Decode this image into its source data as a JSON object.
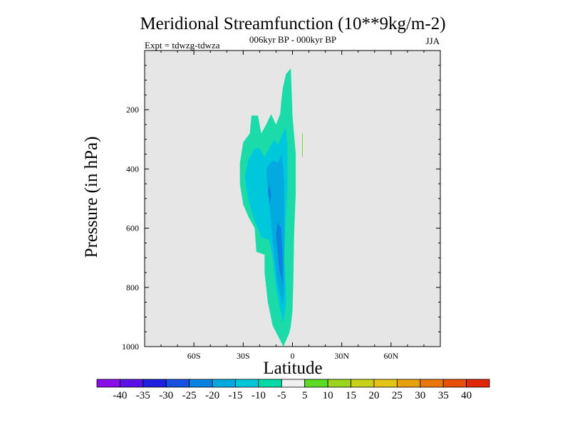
{
  "chart_data": {
    "type": "heatmap",
    "title": "Meridional Streamfunction (10**9kg/m-2)",
    "subtitle": "006kyr BP - 000kyr BP",
    "left_label": "Expt = tdwzg-tdwza",
    "right_label": "JJA",
    "xlabel": "Latitude",
    "ylabel": "Pressure (in hPa)",
    "xlim": [
      -90,
      90
    ],
    "ylim": [
      0,
      1000
    ],
    "y_inverted": true,
    "x_ticks": [
      {
        "value": -60,
        "label": "60S"
      },
      {
        "value": -30,
        "label": "30S"
      },
      {
        "value": 0,
        "label": "0"
      },
      {
        "value": 30,
        "label": "30N"
      },
      {
        "value": 60,
        "label": "60N"
      }
    ],
    "y_ticks": [
      {
        "value": 200,
        "label": "200"
      },
      {
        "value": 400,
        "label": "400"
      },
      {
        "value": 600,
        "label": "600"
      },
      {
        "value": 800,
        "label": "800"
      },
      {
        "value": 1000,
        "label": "1000"
      }
    ],
    "background_color": "#e6e6e6",
    "contour_levels": [
      -40,
      -35,
      -30,
      -25,
      -20,
      -15,
      -10,
      -5,
      5,
      10,
      15,
      20,
      25,
      30,
      35,
      40
    ],
    "colorbar_colors": [
      "#8a0ee8",
      "#5a10e6",
      "#2020e0",
      "#1550e0",
      "#0a82e0",
      "#02aae0",
      "#00c8d8",
      "#00dca8",
      "#f0f0f0",
      "#5cdc24",
      "#9cd41c",
      "#c8d018",
      "#e4c414",
      "#e8a00c",
      "#e87808",
      "#e85008",
      "#e02808"
    ],
    "regions": [
      {
        "level": "-10 to -5",
        "color": "#1bdca9",
        "points": [
          [
            -5.5,
            1000
          ],
          [
            -12,
            930
          ],
          [
            -15,
            850
          ],
          [
            -17,
            750
          ],
          [
            -17,
            690
          ],
          [
            -22,
            680
          ],
          [
            -23,
            600
          ],
          [
            -27,
            560
          ],
          [
            -30,
            520
          ],
          [
            -32,
            450
          ],
          [
            -32,
            380
          ],
          [
            -30,
            310
          ],
          [
            -26,
            280
          ],
          [
            -25,
            220
          ],
          [
            -21,
            220
          ],
          [
            -19,
            280
          ],
          [
            -16,
            250
          ],
          [
            -13,
            215
          ],
          [
            -10,
            250
          ],
          [
            -7.5,
            215
          ],
          [
            -7,
            180
          ],
          [
            -6,
            130
          ],
          [
            -4,
            80
          ],
          [
            -1,
            60
          ],
          [
            -0.5,
            130
          ],
          [
            0,
            220
          ],
          [
            2,
            350
          ],
          [
            2,
            480
          ],
          [
            1,
            620
          ],
          [
            0.5,
            780
          ],
          [
            0,
            880
          ],
          [
            -1,
            930
          ],
          [
            -2,
            955
          ],
          [
            -4,
            980
          ]
        ]
      },
      {
        "level": "-15 to -10",
        "color": "#00c8dc",
        "points": [
          [
            -6,
            920
          ],
          [
            -10,
            800
          ],
          [
            -12,
            700
          ],
          [
            -14,
            640
          ],
          [
            -19,
            630
          ],
          [
            -24,
            560
          ],
          [
            -27,
            500
          ],
          [
            -29,
            430
          ],
          [
            -27,
            370
          ],
          [
            -23,
            330
          ],
          [
            -20,
            330
          ],
          [
            -17,
            360
          ],
          [
            -14,
            330
          ],
          [
            -11,
            300
          ],
          [
            -9,
            320
          ],
          [
            -6,
            280
          ],
          [
            -4,
            260
          ],
          [
            -3,
            320
          ],
          [
            -3,
            450
          ],
          [
            -4,
            560
          ],
          [
            -5,
            700
          ],
          [
            -4,
            800
          ],
          [
            -4,
            860
          ],
          [
            -5,
            900
          ]
        ]
      },
      {
        "level": "-20 to -15",
        "color": "#02aae0",
        "points": [
          [
            -6,
            860
          ],
          [
            -9,
            790
          ],
          [
            -11,
            700
          ],
          [
            -13,
            580
          ],
          [
            -15,
            470
          ],
          [
            -16,
            400
          ],
          [
            -12,
            370
          ],
          [
            -9,
            380
          ],
          [
            -6.5,
            350
          ],
          [
            -5,
            440
          ],
          [
            -5,
            600
          ],
          [
            -5,
            740
          ],
          [
            -5,
            820
          ]
        ]
      },
      {
        "level": "-25 to -20",
        "color": "#0b82e0",
        "points": [
          [
            -6,
            790
          ],
          [
            -8,
            740
          ],
          [
            -9,
            680
          ],
          [
            -10,
            620
          ],
          [
            -9,
            580
          ],
          [
            -7,
            600
          ],
          [
            -6,
            700
          ]
        ]
      },
      {
        "level": "-25 to -20",
        "color": "#0b82e0",
        "points": [
          [
            -14,
            520
          ],
          [
            -15,
            470
          ],
          [
            -14,
            450
          ],
          [
            -13,
            490
          ]
        ]
      },
      {
        "level": "5 to 10",
        "color": "#5cdc24",
        "points": [
          [
            5.9,
            280
          ],
          [
            6.3,
            280
          ],
          [
            6.3,
            360
          ],
          [
            5.9,
            360
          ]
        ]
      }
    ]
  }
}
